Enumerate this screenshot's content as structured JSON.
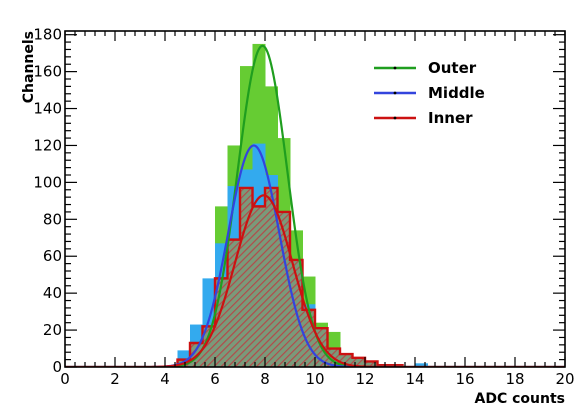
{
  "chart_data": {
    "type": "histogram",
    "xlabel": "ADC counts",
    "ylabel": "Channels",
    "xlim": [
      0,
      20
    ],
    "ylim": [
      0,
      182
    ],
    "xticks": [
      0,
      2,
      4,
      6,
      8,
      10,
      12,
      14,
      16,
      18,
      20
    ],
    "yticks": [
      0,
      20,
      40,
      60,
      80,
      100,
      120,
      140,
      160,
      180
    ],
    "legend": {
      "position": "top-right"
    },
    "series": [
      {
        "name": "Outer",
        "color": "#1f9e1f",
        "fill": "#66cc33",
        "style": "filled",
        "fit": {
          "mean": 7.9,
          "sigma": 1.0,
          "amplitude": 174
        },
        "bins": [
          {
            "x0": 4.5,
            "x1": 5.0,
            "y": 6
          },
          {
            "x0": 5.0,
            "x1": 5.5,
            "y": 20
          },
          {
            "x0": 5.5,
            "x1": 6.0,
            "y": 45
          },
          {
            "x0": 6.0,
            "x1": 6.5,
            "y": 87
          },
          {
            "x0": 6.5,
            "x1": 7.0,
            "y": 120
          },
          {
            "x0": 7.0,
            "x1": 7.5,
            "y": 163
          },
          {
            "x0": 7.5,
            "x1": 8.0,
            "y": 175
          },
          {
            "x0": 8.0,
            "x1": 8.5,
            "y": 152
          },
          {
            "x0": 8.5,
            "x1": 9.0,
            "y": 124
          },
          {
            "x0": 9.0,
            "x1": 9.5,
            "y": 74
          },
          {
            "x0": 9.5,
            "x1": 10.0,
            "y": 49
          },
          {
            "x0": 10.0,
            "x1": 10.5,
            "y": 24
          },
          {
            "x0": 10.5,
            "x1": 11.0,
            "y": 19
          },
          {
            "x0": 11.0,
            "x1": 11.5,
            "y": 5
          }
        ]
      },
      {
        "name": "Middle",
        "color": "#3344dd",
        "fill": "#33aaee",
        "style": "filled",
        "fit": {
          "mean": 7.55,
          "sigma": 1.02,
          "amplitude": 120
        },
        "bins": [
          {
            "x0": 4.5,
            "x1": 5.0,
            "y": 9
          },
          {
            "x0": 5.0,
            "x1": 5.5,
            "y": 23
          },
          {
            "x0": 5.5,
            "x1": 6.0,
            "y": 48
          },
          {
            "x0": 6.0,
            "x1": 6.5,
            "y": 67
          },
          {
            "x0": 6.5,
            "x1": 7.0,
            "y": 98
          },
          {
            "x0": 7.0,
            "x1": 7.5,
            "y": 107
          },
          {
            "x0": 7.5,
            "x1": 8.0,
            "y": 121
          },
          {
            "x0": 8.0,
            "x1": 8.5,
            "y": 104
          },
          {
            "x0": 8.5,
            "x1": 9.0,
            "y": 76
          },
          {
            "x0": 9.0,
            "x1": 9.5,
            "y": 56
          },
          {
            "x0": 9.5,
            "x1": 10.0,
            "y": 34
          },
          {
            "x0": 10.0,
            "x1": 10.5,
            "y": 20
          },
          {
            "x0": 10.5,
            "x1": 11.0,
            "y": 8
          },
          {
            "x0": 14.0,
            "x1": 14.5,
            "y": 2
          }
        ]
      },
      {
        "name": "Inner",
        "color": "#cc1111",
        "fill": "#aa3333",
        "style": "hatched",
        "fit": {
          "mean": 7.95,
          "sigma": 1.15,
          "amplitude": 93
        },
        "bins": [
          {
            "x0": 4.5,
            "x1": 5.0,
            "y": 4
          },
          {
            "x0": 5.0,
            "x1": 5.5,
            "y": 13
          },
          {
            "x0": 5.5,
            "x1": 6.0,
            "y": 22
          },
          {
            "x0": 6.0,
            "x1": 6.5,
            "y": 48
          },
          {
            "x0": 6.5,
            "x1": 7.0,
            "y": 69
          },
          {
            "x0": 7.0,
            "x1": 7.5,
            "y": 97
          },
          {
            "x0": 7.5,
            "x1": 8.0,
            "y": 87
          },
          {
            "x0": 8.0,
            "x1": 8.5,
            "y": 97
          },
          {
            "x0": 8.5,
            "x1": 9.0,
            "y": 84
          },
          {
            "x0": 9.0,
            "x1": 9.5,
            "y": 58
          },
          {
            "x0": 9.5,
            "x1": 10.0,
            "y": 31
          },
          {
            "x0": 10.0,
            "x1": 10.5,
            "y": 21
          },
          {
            "x0": 10.5,
            "x1": 11.0,
            "y": 10
          },
          {
            "x0": 11.0,
            "x1": 11.5,
            "y": 7
          },
          {
            "x0": 11.5,
            "x1": 12.0,
            "y": 5
          },
          {
            "x0": 12.0,
            "x1": 12.5,
            "y": 3
          },
          {
            "x0": 12.5,
            "x1": 13.0,
            "y": 1
          },
          {
            "x0": 13.0,
            "x1": 13.5,
            "y": 1
          }
        ]
      }
    ]
  }
}
